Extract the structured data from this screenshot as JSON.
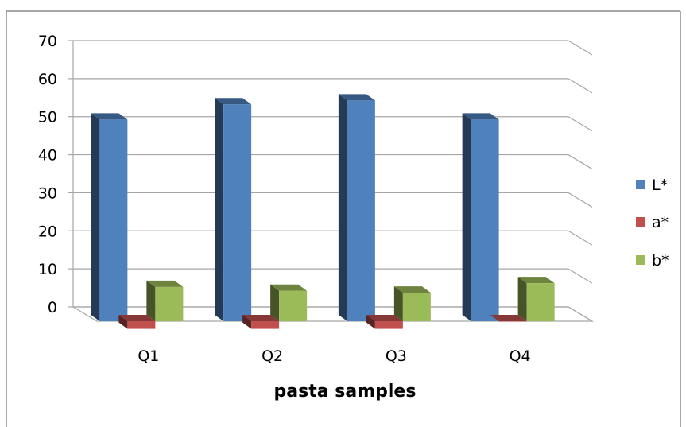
{
  "chart_data": {
    "type": "bar",
    "categories": [
      "Q1",
      "Q2",
      "Q3",
      "Q4"
    ],
    "series": [
      {
        "name": "L*",
        "color": "#4F81BD",
        "values": [
          53,
          57,
          58,
          53
        ]
      },
      {
        "name": "a*",
        "color": "#C0504D",
        "values": [
          -2,
          -2,
          -2,
          0
        ]
      },
      {
        "name": "b*",
        "color": "#9BBB59",
        "values": [
          9,
          8,
          7.5,
          10
        ]
      }
    ],
    "yticks": [
      "0",
      "10",
      "20",
      "30",
      "40",
      "50",
      "60",
      "70"
    ],
    "ylim": [
      0,
      70
    ],
    "xlabel": "pasta samples",
    "ylabel": "",
    "title": "",
    "grid": true,
    "legend": "right",
    "style": "3d-clustered-column"
  }
}
